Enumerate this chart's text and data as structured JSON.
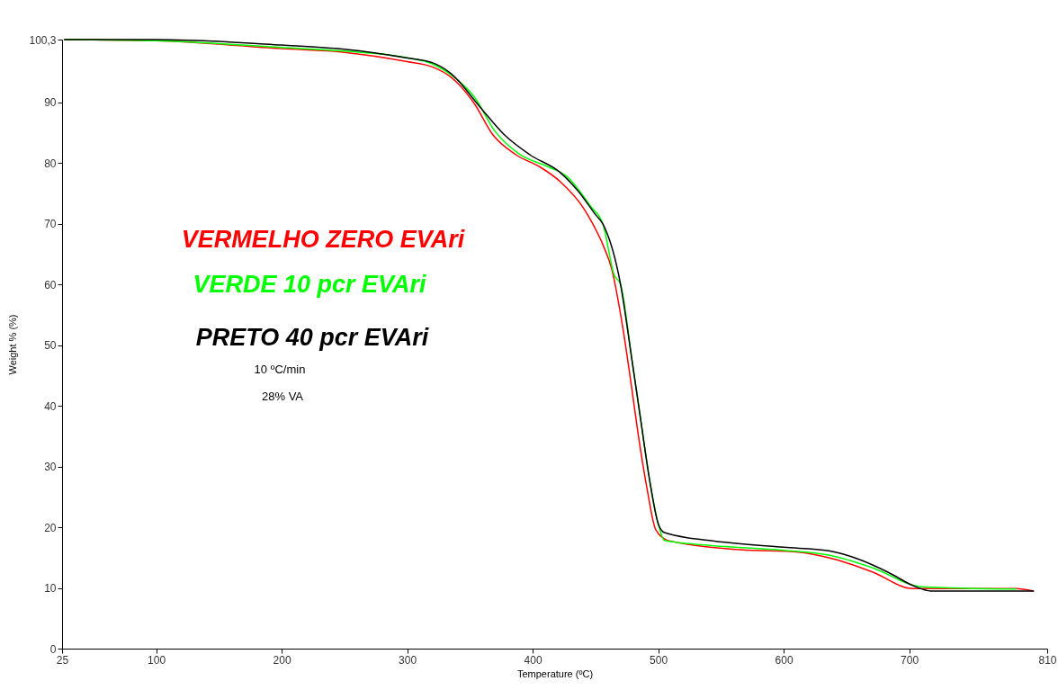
{
  "chart_data": {
    "type": "line",
    "xlabel": "Temperature (ºC)",
    "ylabel": "Weight % (%)",
    "xlim": [
      25,
      810
    ],
    "xticks": [
      25,
      100,
      200,
      300,
      400,
      500,
      600,
      700,
      810
    ],
    "ylim": [
      0,
      100.3
    ],
    "yticks": [
      0,
      10,
      20,
      30,
      40,
      50,
      60,
      70,
      80,
      90,
      {
        "value": 100.3,
        "label": "100,3"
      }
    ],
    "grid": false,
    "legend": false,
    "line_style": "solid",
    "marker": "none",
    "annotations": [
      "10 ºC/min",
      "28% VA"
    ],
    "series": [
      {
        "name": "VERMELHO  ZERO EVAri",
        "color": "#ff0000",
        "x": [
          27,
          100,
          200,
          250,
          299,
          320,
          335,
          354,
          368,
          387,
          406,
          422,
          441,
          448,
          456,
          463,
          472,
          479,
          484,
          491,
          498,
          508,
          565,
          612,
          641,
          671,
          703,
          785,
          799
        ],
        "values": [
          100.3,
          100.1,
          98.8,
          98.2,
          96.7,
          95.8,
          94.1,
          89.6,
          84.7,
          81.3,
          79.3,
          76.9,
          72.4,
          69.9,
          66.5,
          62.5,
          52.6,
          42.8,
          35.4,
          26.5,
          19.6,
          17.8,
          16.3,
          15.9,
          14.7,
          12.6,
          9.9,
          9.9,
          9.5
        ]
      },
      {
        "name": "VERDE 10 pcr EVAri",
        "color": "#00ff00",
        "x": [
          27,
          100,
          200,
          250,
          300,
          320,
          335,
          354,
          370,
          389,
          413,
          427,
          446,
          456,
          465,
          470,
          479,
          486,
          493,
          500,
          505,
          541,
          600,
          636,
          671,
          710,
          785
        ],
        "values": [
          100.3,
          100.1,
          99.0,
          98.4,
          97.3,
          96.3,
          94.5,
          90.7,
          85.2,
          81.5,
          79.3,
          77.8,
          72.9,
          69.9,
          61.5,
          60.0,
          47.7,
          37.8,
          28.0,
          20.6,
          17.8,
          17.0,
          16.2,
          15.4,
          13.3,
          10.2,
          9.8
        ]
      },
      {
        "name": "PRETO 40 pcr EVAri",
        "color": "#000000",
        "x": [
          27,
          100,
          200,
          250,
          299,
          320,
          335,
          358,
          377,
          398,
          422,
          436,
          450,
          456,
          470,
          479,
          486,
          493,
          500,
          505,
          541,
          600,
          636,
          660,
          683,
          705,
          717,
          799
        ],
        "values": [
          100.3,
          100.3,
          99.4,
          98.7,
          97.3,
          96.5,
          94.7,
          89.2,
          84.7,
          81.3,
          78.4,
          75.4,
          71.5,
          69.9,
          60.0,
          47.7,
          37.8,
          28.0,
          20.6,
          19.1,
          17.8,
          16.7,
          16.1,
          14.7,
          12.6,
          10.2,
          9.5,
          9.5
        ]
      }
    ]
  }
}
